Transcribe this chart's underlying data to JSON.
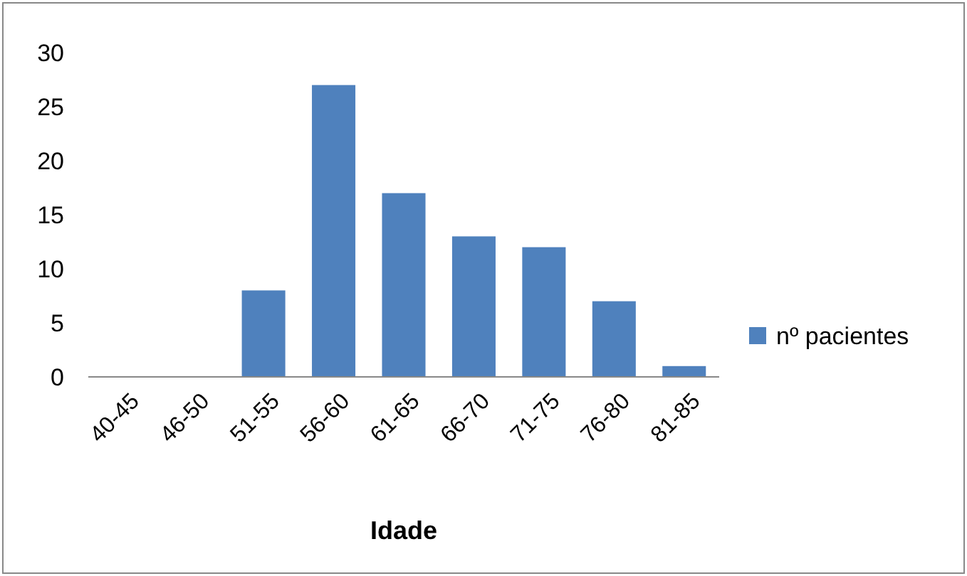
{
  "chart_data": {
    "type": "bar",
    "xlabel": "Idade",
    "categories": [
      "40-45",
      "46-50",
      "51-55",
      "56-60",
      "61-65",
      "66-70",
      "71-75",
      "76-80",
      "81-85"
    ],
    "series": [
      {
        "name": "nº pacientes",
        "color": "#4f81bd",
        "values": [
          0,
          0,
          8,
          27,
          17,
          13,
          12,
          7,
          1
        ]
      }
    ],
    "ylim": [
      0,
      30
    ],
    "yticks": [
      0,
      5,
      10,
      15,
      20,
      25,
      30
    ],
    "grid": false,
    "legend": "right"
  }
}
